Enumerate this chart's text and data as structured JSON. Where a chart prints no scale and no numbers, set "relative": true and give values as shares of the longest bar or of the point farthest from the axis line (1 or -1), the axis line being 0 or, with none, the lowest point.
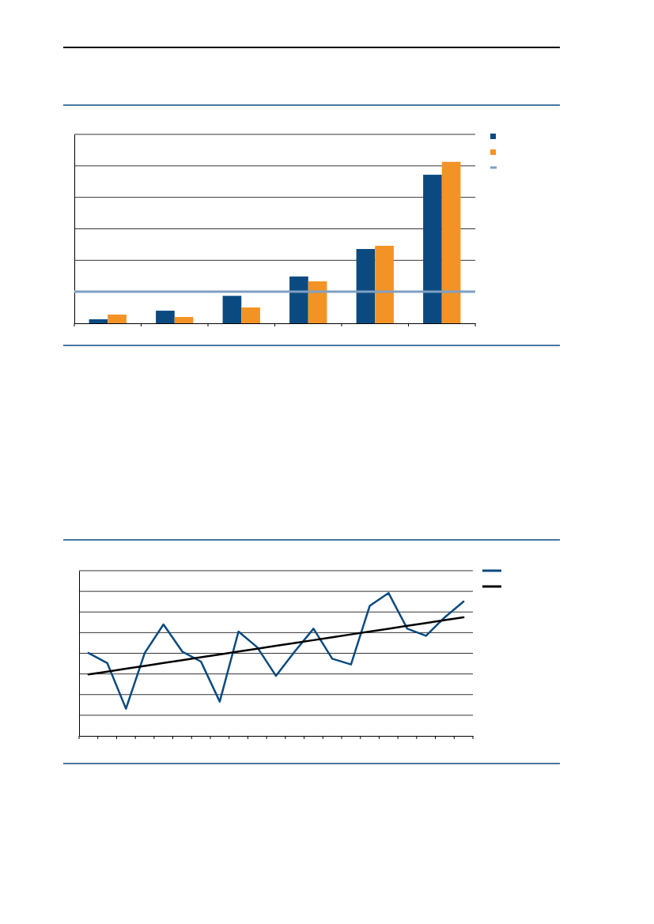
{
  "chart_data": [
    {
      "type": "bar",
      "relative": true,
      "categories": [
        null,
        null,
        null,
        null,
        null,
        null
      ],
      "series": [
        {
          "color": "#0b4a80",
          "values": [
            0.025,
            0.078,
            0.17,
            0.29,
            0.46,
            0.92
          ]
        },
        {
          "color": "#f39325",
          "values": [
            0.054,
            0.039,
            0.098,
            0.26,
            0.48,
            1
          ]
        }
      ],
      "ref_lines": [
        {
          "axis": "y",
          "value": 0.196,
          "color": "#7f9fc4"
        }
      ],
      "grid": "y"
    },
    {
      "type": "line",
      "relative": true,
      "categories": [
        null,
        null,
        null,
        null,
        null,
        null,
        null,
        null,
        null,
        null,
        null,
        null,
        null,
        null,
        null,
        null,
        null,
        null,
        null,
        null,
        null
      ],
      "series": [
        {
          "color": "#0b4a80",
          "values": [
            0.58,
            0.51,
            0.19,
            0.58,
            0.78,
            0.59,
            0.52,
            0.24,
            0.73,
            0.62,
            0.42,
            0.59,
            0.75,
            0.54,
            0.5,
            0.91,
            1,
            0.75,
            0.7,
            0.83,
            0.94
          ]
        },
        {
          "color": "#000000",
          "values": [
            0.43,
            0.45,
            0.47,
            0.49,
            0.51,
            0.53,
            0.55,
            0.57,
            0.59,
            0.61,
            0.63,
            0.65,
            0.67,
            0.69,
            0.71,
            0.73,
            0.75,
            0.77,
            0.79,
            0.81,
            0.83
          ]
        }
      ],
      "grid": "y",
      "marker": "none",
      "line_style": "solid"
    }
  ]
}
